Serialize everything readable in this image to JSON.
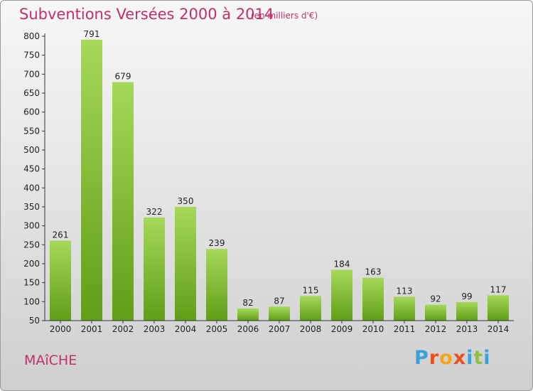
{
  "title": "Subventions Versées 2000 à 2014",
  "subtitle": "(en milliers d'€)",
  "town": "MAîCHE",
  "logo": {
    "text": "Proxiti",
    "colors": [
      "#3aa0d8",
      "#e8501e",
      "#f3a51d",
      "#e8501e",
      "#3aa0d8",
      "#8cc43c",
      "#3aa0d8"
    ]
  },
  "colors": {
    "bar_light": "#a6d85a",
    "bar_dark": "#5f9e18",
    "accent": "#c0306a"
  },
  "chart_data": {
    "type": "bar",
    "title": "Subventions Versées 2000 à 2014",
    "subtitle": "(en milliers d'€)",
    "xlabel": "",
    "ylabel": "",
    "categories": [
      "2000",
      "2001",
      "2002",
      "2003",
      "2004",
      "2005",
      "2006",
      "2007",
      "2008",
      "2009",
      "2010",
      "2011",
      "2012",
      "2013",
      "2014"
    ],
    "values": [
      261,
      791,
      679,
      322,
      350,
      239,
      82,
      87,
      115,
      184,
      163,
      113,
      92,
      99,
      117
    ],
    "ylim": [
      50,
      800
    ],
    "yticks": [
      50,
      100,
      150,
      200,
      250,
      300,
      350,
      400,
      450,
      500,
      550,
      600,
      650,
      700,
      750,
      800
    ],
    "grid": false,
    "legend": "none"
  }
}
